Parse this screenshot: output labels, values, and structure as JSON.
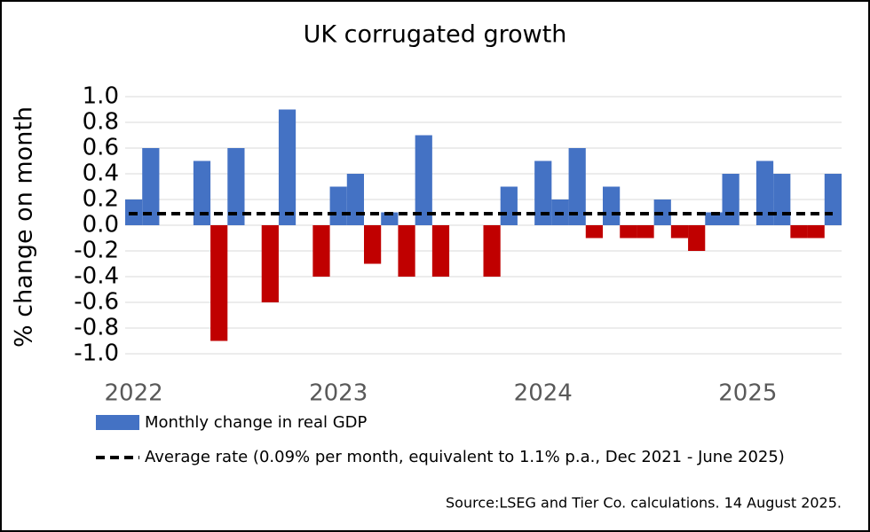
{
  "chart_data": {
    "type": "bar",
    "title": "UK corrugated growth",
    "y_label": "% change on month",
    "categories": [
      "2022",
      null,
      null,
      null,
      null,
      null,
      null,
      null,
      null,
      null,
      null,
      null,
      "2023",
      null,
      null,
      null,
      null,
      null,
      null,
      null,
      null,
      null,
      null,
      null,
      "2024",
      null,
      null,
      null,
      null,
      null,
      null,
      null,
      null,
      null,
      null,
      null,
      "2025",
      null,
      null,
      null,
      null,
      null
    ],
    "series": [
      {
        "name": "Monthly change in real GDP",
        "color": "#4472c4",
        "negative_color": "#c00000",
        "values": [
          0.2,
          0.6,
          0,
          0,
          0.5,
          -0.9,
          0.6,
          0,
          -0.6,
          0.9,
          0,
          -0.4,
          0.3,
          0.4,
          -0.3,
          0.1,
          -0.4,
          0.7,
          -0.4,
          0,
          0,
          -0.4,
          0.3,
          0,
          0.5,
          0.2,
          0.6,
          -0.1,
          0.3,
          -0.1,
          -0.1,
          0.2,
          -0.1,
          -0.2,
          0.1,
          0.4,
          0,
          0.5,
          0.4,
          -0.1,
          -0.1,
          0.4
        ]
      }
    ],
    "average": {
      "name": "Average rate (0.09% per month, equivalent to 1.1% p.a., Dec 2021 - June 2025)",
      "value": 0.09,
      "color": "#000000"
    },
    "ylim": [
      -1,
      1
    ],
    "yticks": [
      {
        "value": -1,
        "label": "-1.0"
      },
      -0.8,
      -0.6,
      -0.4,
      -0.2,
      {
        "value": 0,
        "label": "0.0"
      },
      0.2,
      0.4,
      0.6,
      0.8,
      {
        "value": 1,
        "label": "1.0"
      }
    ],
    "grid": true,
    "source": "Source:LSEG and Tier Co. calculations. 14 August 2025."
  }
}
